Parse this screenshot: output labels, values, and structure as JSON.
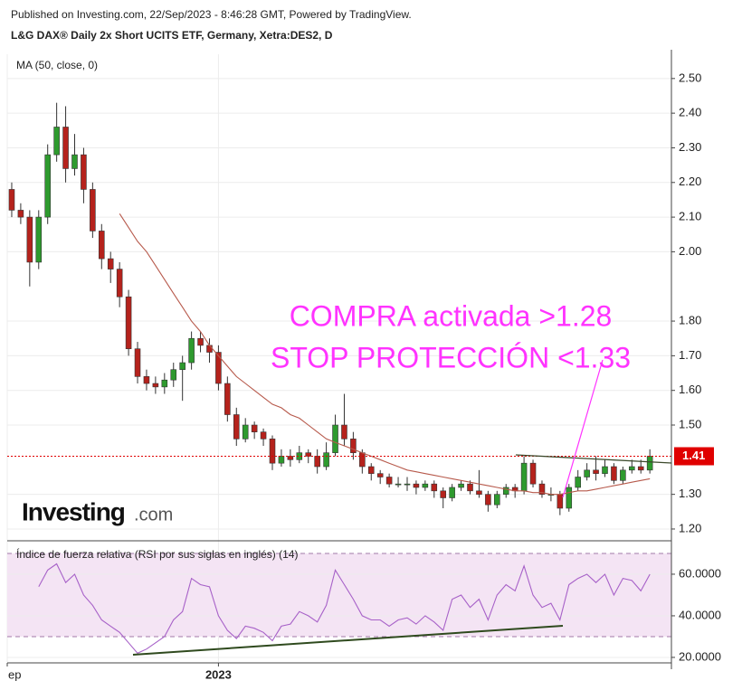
{
  "header": {
    "published": "Published on Investing.com, 22/Sep/2023 - 8:46:28 GMT, Powered by TradingView.",
    "title": "L&G DAX® Daily 2x Short UCITS ETF, Germany, Xetra:DES2, D"
  },
  "logo": {
    "brand": "Investing",
    "suffix": ".com"
  },
  "chart_data": [
    {
      "type": "candlestick",
      "annotations": [
        "COMPRA activada >1.28",
        "STOP PROTECCIÓN <1.33"
      ],
      "up_color": "#2e9a2e",
      "down_color": "#b5221c",
      "open": [
        2.18,
        2.12,
        2.1,
        1.97,
        2.1,
        2.28,
        2.36,
        2.24,
        2.28,
        2.18,
        2.06,
        1.98,
        1.95,
        1.87,
        1.72,
        1.64,
        1.62,
        1.61,
        1.63,
        1.66,
        1.68,
        1.75,
        1.73,
        1.71,
        1.62,
        1.53,
        1.46,
        1.5,
        1.48,
        1.46,
        1.39,
        1.41,
        1.4,
        1.42,
        1.41,
        1.38,
        1.42,
        1.5,
        1.46,
        1.42,
        1.38,
        1.36,
        1.35,
        1.33,
        1.33,
        1.33,
        1.32,
        1.33,
        1.31,
        1.29,
        1.32,
        1.33,
        1.31,
        1.3,
        1.27,
        1.3,
        1.32,
        1.31,
        1.39,
        1.33,
        1.3,
        1.3,
        1.26,
        1.32,
        1.35,
        1.37,
        1.36,
        1.38,
        1.34,
        1.37,
        1.38,
        1.37
      ],
      "high": [
        2.2,
        2.14,
        2.12,
        2.12,
        2.31,
        2.43,
        2.42,
        2.34,
        2.3,
        2.2,
        2.08,
        2.0,
        1.97,
        1.89,
        1.74,
        1.66,
        1.64,
        1.65,
        1.68,
        1.7,
        1.77,
        1.77,
        1.75,
        1.73,
        1.64,
        1.55,
        1.52,
        1.51,
        1.49,
        1.47,
        1.43,
        1.43,
        1.44,
        1.43,
        1.43,
        1.45,
        1.53,
        1.59,
        1.48,
        1.43,
        1.39,
        1.37,
        1.36,
        1.35,
        1.35,
        1.34,
        1.34,
        1.34,
        1.32,
        1.33,
        1.34,
        1.34,
        1.37,
        1.31,
        1.31,
        1.33,
        1.33,
        1.41,
        1.4,
        1.34,
        1.32,
        1.31,
        1.33,
        1.37,
        1.39,
        1.41,
        1.4,
        1.39,
        1.38,
        1.4,
        1.4,
        1.43
      ],
      "low": [
        2.1,
        2.08,
        1.9,
        1.95,
        2.08,
        2.26,
        2.2,
        2.22,
        2.14,
        2.04,
        1.95,
        1.91,
        1.84,
        1.7,
        1.62,
        1.6,
        1.59,
        1.59,
        1.61,
        1.57,
        1.66,
        1.71,
        1.68,
        1.6,
        1.51,
        1.44,
        1.45,
        1.46,
        1.44,
        1.37,
        1.38,
        1.38,
        1.39,
        1.39,
        1.36,
        1.37,
        1.41,
        1.44,
        1.4,
        1.36,
        1.34,
        1.33,
        1.32,
        1.32,
        1.31,
        1.3,
        1.31,
        1.29,
        1.26,
        1.28,
        1.31,
        1.3,
        1.29,
        1.25,
        1.26,
        1.29,
        1.29,
        1.3,
        1.32,
        1.29,
        1.28,
        1.24,
        1.25,
        1.31,
        1.34,
        1.34,
        1.35,
        1.33,
        1.33,
        1.36,
        1.36,
        1.36
      ],
      "close": [
        2.12,
        2.1,
        1.97,
        2.1,
        2.28,
        2.36,
        2.24,
        2.28,
        2.18,
        2.06,
        1.98,
        1.95,
        1.87,
        1.72,
        1.64,
        1.62,
        1.61,
        1.63,
        1.66,
        1.68,
        1.75,
        1.73,
        1.71,
        1.62,
        1.53,
        1.46,
        1.5,
        1.48,
        1.46,
        1.39,
        1.41,
        1.4,
        1.42,
        1.41,
        1.38,
        1.42,
        1.5,
        1.46,
        1.42,
        1.38,
        1.36,
        1.35,
        1.33,
        1.33,
        1.33,
        1.32,
        1.33,
        1.31,
        1.29,
        1.32,
        1.33,
        1.31,
        1.3,
        1.27,
        1.3,
        1.32,
        1.31,
        1.39,
        1.33,
        1.3,
        1.3,
        1.26,
        1.32,
        1.35,
        1.37,
        1.36,
        1.38,
        1.34,
        1.37,
        1.38,
        1.37,
        1.41
      ],
      "series": [
        {
          "name": "MA (50, close, 0)",
          "color": "#b75a4c",
          "values": [
            null,
            null,
            null,
            null,
            null,
            null,
            null,
            null,
            null,
            null,
            null,
            null,
            2.11,
            2.07,
            2.03,
            2.0,
            1.96,
            1.92,
            1.88,
            1.84,
            1.8,
            1.77,
            1.73,
            1.7,
            1.67,
            1.64,
            1.62,
            1.6,
            1.58,
            1.56,
            1.55,
            1.53,
            1.52,
            1.5,
            1.48,
            1.46,
            1.45,
            1.44,
            1.43,
            1.42,
            1.41,
            1.4,
            1.39,
            1.38,
            1.37,
            1.365,
            1.36,
            1.355,
            1.35,
            1.345,
            1.34,
            1.335,
            1.33,
            1.325,
            1.32,
            1.315,
            1.31,
            1.31,
            1.305,
            1.305,
            1.3,
            1.3,
            1.305,
            1.31,
            1.31,
            1.315,
            1.32,
            1.325,
            1.33,
            1.335,
            1.34,
            1.345
          ]
        }
      ],
      "last_price": {
        "value": 1.41,
        "label": "1.41"
      },
      "last_price_color": "#e00000",
      "xlim": [
        -0.5,
        73.4
      ],
      "xticks": [
        {
          "value": -0.5,
          "label": "ep"
        },
        {
          "value": 23,
          "label": "2023"
        }
      ],
      "ylim": [
        1.166,
        2.57
      ],
      "yticks": [
        {
          "value": 1.2,
          "label": "1.20"
        },
        {
          "value": 1.3,
          "label": "1.30"
        },
        {
          "value": 1.5,
          "label": "1.50"
        },
        {
          "value": 1.6,
          "label": "1.60"
        },
        {
          "value": 1.7,
          "label": "1.70"
        },
        {
          "value": 1.8,
          "label": "1.80"
        },
        {
          "value": 2.0,
          "label": "2.00"
        },
        {
          "value": 2.1,
          "label": "2.10"
        },
        {
          "value": 2.2,
          "label": "2.20"
        },
        {
          "value": 2.3,
          "label": "2.30"
        },
        {
          "value": 2.4,
          "label": "2.40"
        },
        {
          "value": 2.5,
          "label": "2.50"
        }
      ],
      "grid": true
    },
    {
      "type": "line",
      "series": [
        {
          "name": "Índice de fuerza relativa (RSI por sus siglas en inglés) (14)",
          "color": "#a761c8",
          "values": [
            null,
            null,
            null,
            54,
            62,
            65,
            56,
            60,
            50,
            45,
            38,
            35,
            32,
            27,
            22,
            24,
            27,
            30,
            38,
            42,
            58,
            55,
            54,
            40,
            33,
            29,
            35,
            34,
            32,
            28,
            35,
            36,
            42,
            40,
            37,
            45,
            62,
            55,
            48,
            40,
            38,
            38,
            35,
            38,
            39,
            36,
            40,
            37,
            33,
            48,
            50,
            44,
            48,
            38,
            50,
            55,
            52,
            64,
            50,
            44,
            46,
            38,
            55,
            58,
            60,
            56,
            60,
            50,
            58,
            57,
            52,
            60
          ]
        }
      ],
      "bands": [
        30,
        70
      ],
      "band_color": "#f4e4f4",
      "xlim": [
        -0.5,
        73.4
      ],
      "ylim": [
        17.8,
        75.2
      ],
      "yticks": [
        {
          "value": 20,
          "label": "20.0000"
        },
        {
          "value": 40,
          "label": "40.0000"
        },
        {
          "value": 60,
          "label": "60.0000"
        }
      ],
      "grid": true
    }
  ]
}
